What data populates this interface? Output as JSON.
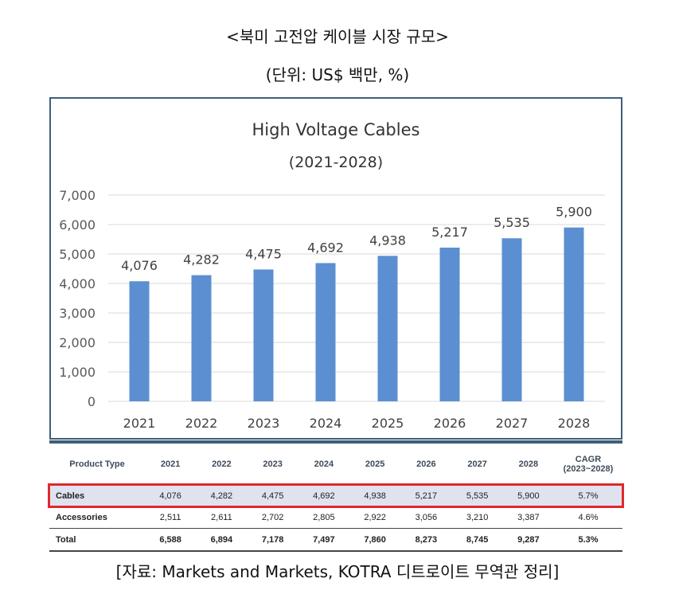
{
  "header": {
    "title": "<북미 고전압 케이블 시장 규모>",
    "unit": "(단위: US$ 백만, %)"
  },
  "chart_data": {
    "type": "bar",
    "title": "High Voltage Cables",
    "subtitle": "(2021-2028)",
    "categories": [
      "2021",
      "2022",
      "2023",
      "2024",
      "2025",
      "2026",
      "2027",
      "2028"
    ],
    "values": [
      4076,
      4282,
      4475,
      4692,
      4938,
      5217,
      5535,
      5900
    ],
    "value_labels": [
      "4,076",
      "4,282",
      "4,475",
      "4,692",
      "4,938",
      "5,217",
      "5,535",
      "5,900"
    ],
    "ylim": [
      0,
      7000
    ],
    "yticks": [
      "0",
      "1,000",
      "2,000",
      "3,000",
      "4,000",
      "5,000",
      "6,000",
      "7,000"
    ],
    "grid": true,
    "bar_color": "#5b8fd1"
  },
  "table": {
    "headers": [
      "Product Type",
      "2021",
      "2022",
      "2023",
      "2024",
      "2025",
      "2026",
      "2027",
      "2028",
      "CAGR\n(2023~2028)"
    ],
    "rows": [
      {
        "name": "Cables",
        "values": [
          "4,076",
          "4,282",
          "4,475",
          "4,692",
          "4,938",
          "5,217",
          "5,535",
          "5,900",
          "5.7%"
        ]
      },
      {
        "name": "Accessories",
        "values": [
          "2,511",
          "2,611",
          "2,702",
          "2,805",
          "2,922",
          "3,056",
          "3,210",
          "3,387",
          "4.6%"
        ]
      },
      {
        "name": "Total",
        "values": [
          "6,588",
          "6,894",
          "7,178",
          "7,497",
          "7,860",
          "8,273",
          "8,745",
          "9,287",
          "5.3%"
        ]
      }
    ],
    "highlight_color": "#e0282e"
  },
  "footer": {
    "source": "[자료: Markets and Markets, KOTRA 디트로이트 무역관 정리]"
  }
}
